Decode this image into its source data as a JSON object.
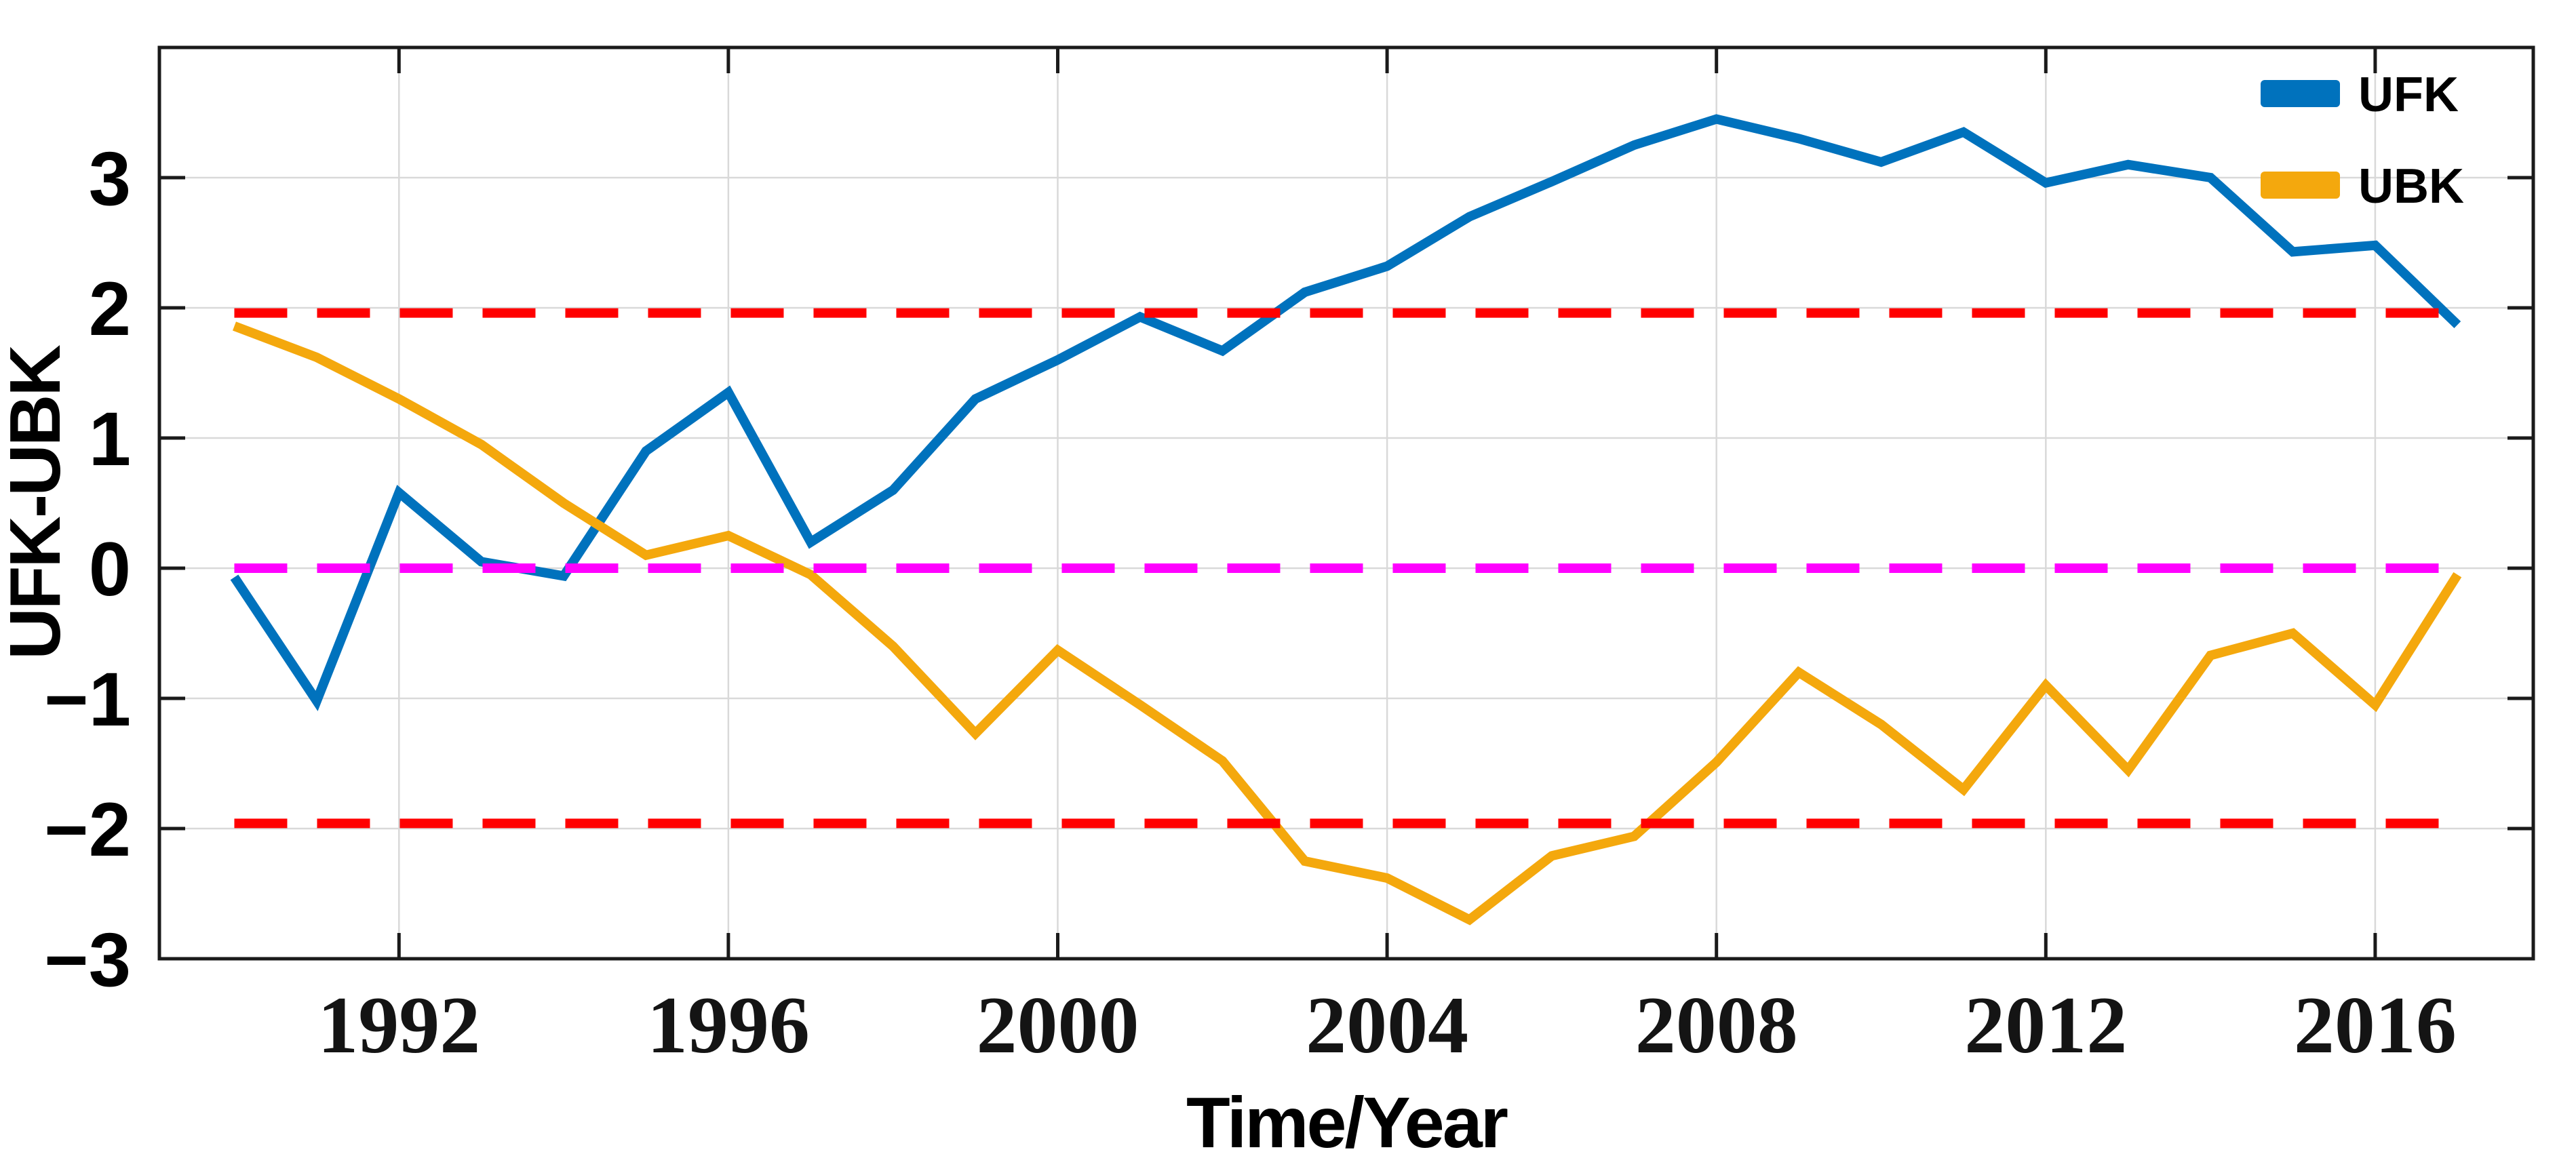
{
  "figure": {
    "background": "#FFFFFF"
  },
  "chart_data": {
    "type": "line",
    "title": "",
    "xlabel": "Time/Year",
    "ylabel": "UFK-UBK",
    "x": [
      1990,
      1991,
      1992,
      1993,
      1994,
      1995,
      1996,
      1997,
      1998,
      1999,
      2000,
      2001,
      2002,
      2003,
      2004,
      2005,
      2006,
      2007,
      2008,
      2009,
      2010,
      2011,
      2012,
      2013,
      2014,
      2015,
      2016,
      2017
    ],
    "series": [
      {
        "name": "UFK",
        "color": "#0072BD",
        "values": [
          -0.07,
          -1.02,
          0.58,
          0.05,
          -0.06,
          0.9,
          1.35,
          0.2,
          0.6,
          1.3,
          1.6,
          1.93,
          1.67,
          2.12,
          2.32,
          2.7,
          2.97,
          3.25,
          3.45,
          3.3,
          3.12,
          3.35,
          2.96,
          3.1,
          3.0,
          2.43,
          2.48,
          1.87
        ]
      },
      {
        "name": "UBK",
        "color": "#F4A80D",
        "values": [
          1.86,
          1.62,
          1.3,
          0.95,
          0.5,
          0.1,
          0.25,
          -0.05,
          -0.6,
          -1.27,
          -0.63,
          -1.05,
          -1.48,
          -2.25,
          -2.38,
          -2.7,
          -2.21,
          -2.06,
          -1.49,
          -0.8,
          -1.2,
          -1.7,
          -0.9,
          -1.55,
          -0.67,
          -0.5,
          -1.05,
          -0.05
        ]
      }
    ],
    "reference_lines": [
      {
        "name": "upper-significance-threshold",
        "value": 1.96,
        "color": "#FF0000",
        "style": "dashed",
        "x_span": [
          1990,
          2017
        ]
      },
      {
        "name": "zero-line",
        "value": 0,
        "color": "#FF00FF",
        "style": "dashed",
        "x_span": [
          1990,
          2017
        ]
      },
      {
        "name": "lower-significance-threshold",
        "value": -1.96,
        "color": "#FF0000",
        "style": "dashed",
        "x_span": [
          1990,
          2017
        ]
      }
    ],
    "xlim": [
      1989.09,
      2017.92
    ],
    "ylim": [
      -3,
      4
    ],
    "xticks": [
      1992,
      1996,
      2000,
      2004,
      2008,
      2012,
      2016
    ],
    "xticklabels": [
      "1992",
      "1996",
      "2000",
      "2004",
      "2008",
      "2012",
      "2016"
    ],
    "yticks": [
      -3,
      -2,
      -1,
      0,
      1,
      2,
      3
    ],
    "yticklabels": [
      "−3",
      "−2",
      "−1",
      "0",
      "1",
      "2",
      "3"
    ],
    "grid": true,
    "legend": {
      "position": "top-right",
      "entries": [
        "UFK",
        "UBK"
      ]
    },
    "colors": {
      "grid": "#D9D9D9",
      "axis_box": "#1A1A1A",
      "tick_mark": "#1A1A1A"
    }
  }
}
